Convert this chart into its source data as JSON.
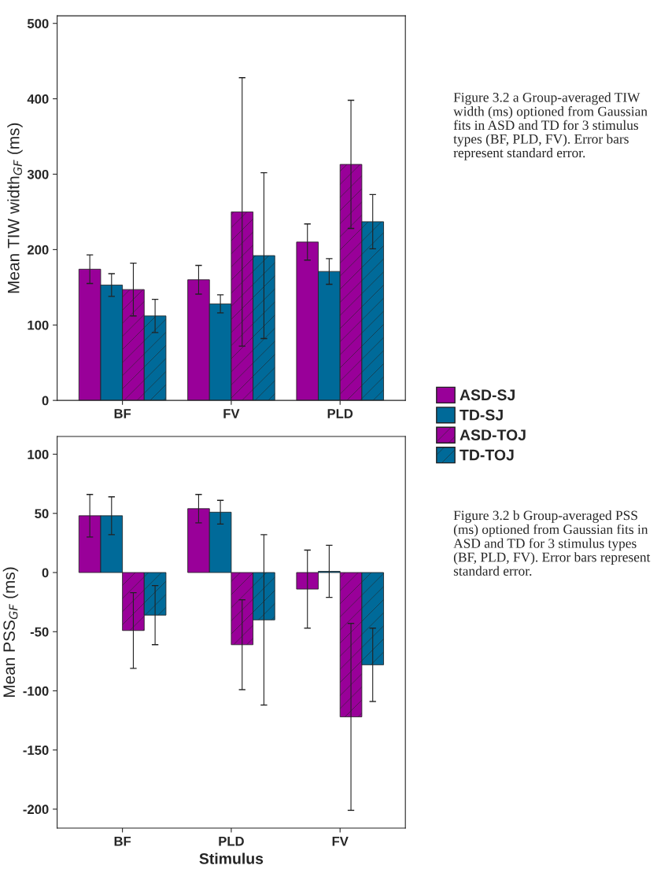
{
  "chart_data": [
    {
      "type": "bar",
      "ylabel": "Mean TIW width$_{GF}$ (ms)",
      "categories": [
        "BF",
        "FV",
        "PLD"
      ],
      "ylim": [
        0,
        510
      ],
      "yticks": [
        0,
        100,
        200,
        300,
        400,
        500
      ],
      "grid": false,
      "legend": "bottom right",
      "series": [
        {
          "name": "ASD-SJ",
          "color": "#990099",
          "values": [
            174,
            160,
            210
          ],
          "errors": [
            19,
            19,
            24
          ]
        },
        {
          "name": "TD-SJ",
          "color": "#006a99",
          "values": [
            153,
            128,
            171
          ],
          "errors": [
            15,
            12,
            17
          ]
        },
        {
          "name": "ASD-TOJ",
          "color": "#990099",
          "values": [
            147,
            250,
            313
          ],
          "errors": [
            35,
            178,
            85
          ]
        },
        {
          "name": "TD-TOJ",
          "color": "#006a99",
          "values": [
            112,
            192,
            237
          ],
          "errors": [
            22,
            110,
            36
          ]
        }
      ],
      "annotations": [
        "Figure 3.2 a Group-averaged TIW width (ms) optioned from Gaussian fits in ASD and TD for 3 stimulus types (BF, PLD, FV). Error bars represent standard error."
      ]
    },
    {
      "type": "bar",
      "ylabel": "Mean PSS$_{GF}$ (ms)",
      "xlabel": "Stimulus",
      "categories": [
        "BF",
        "PLD",
        "FV"
      ],
      "ylim": [
        -216,
        115
      ],
      "yticks": [
        -200,
        -150,
        -100,
        -50,
        0,
        50,
        100
      ],
      "grid": false,
      "series": [
        {
          "color": "#990099",
          "values": [
            48,
            54,
            -14
          ],
          "errors": [
            18,
            12,
            33
          ]
        },
        {
          "color": "#006a99",
          "values": [
            48,
            51,
            1
          ],
          "errors": [
            16,
            10,
            22
          ]
        },
        {
          "color": "#990099",
          "values": [
            -49,
            -61,
            -122
          ],
          "errors": [
            32,
            38,
            79
          ]
        },
        {
          "color": "#006a99",
          "values": [
            -36,
            -40,
            -78
          ],
          "errors": [
            25,
            72,
            31
          ]
        }
      ],
      "annotations": [
        "Figure 3.2 b Group-averaged PSS (ms) optioned from Gaussian fits in ASD and TD for 3 stimulus types (BF, PLD, FV). Error bars represent standard error."
      ]
    }
  ]
}
